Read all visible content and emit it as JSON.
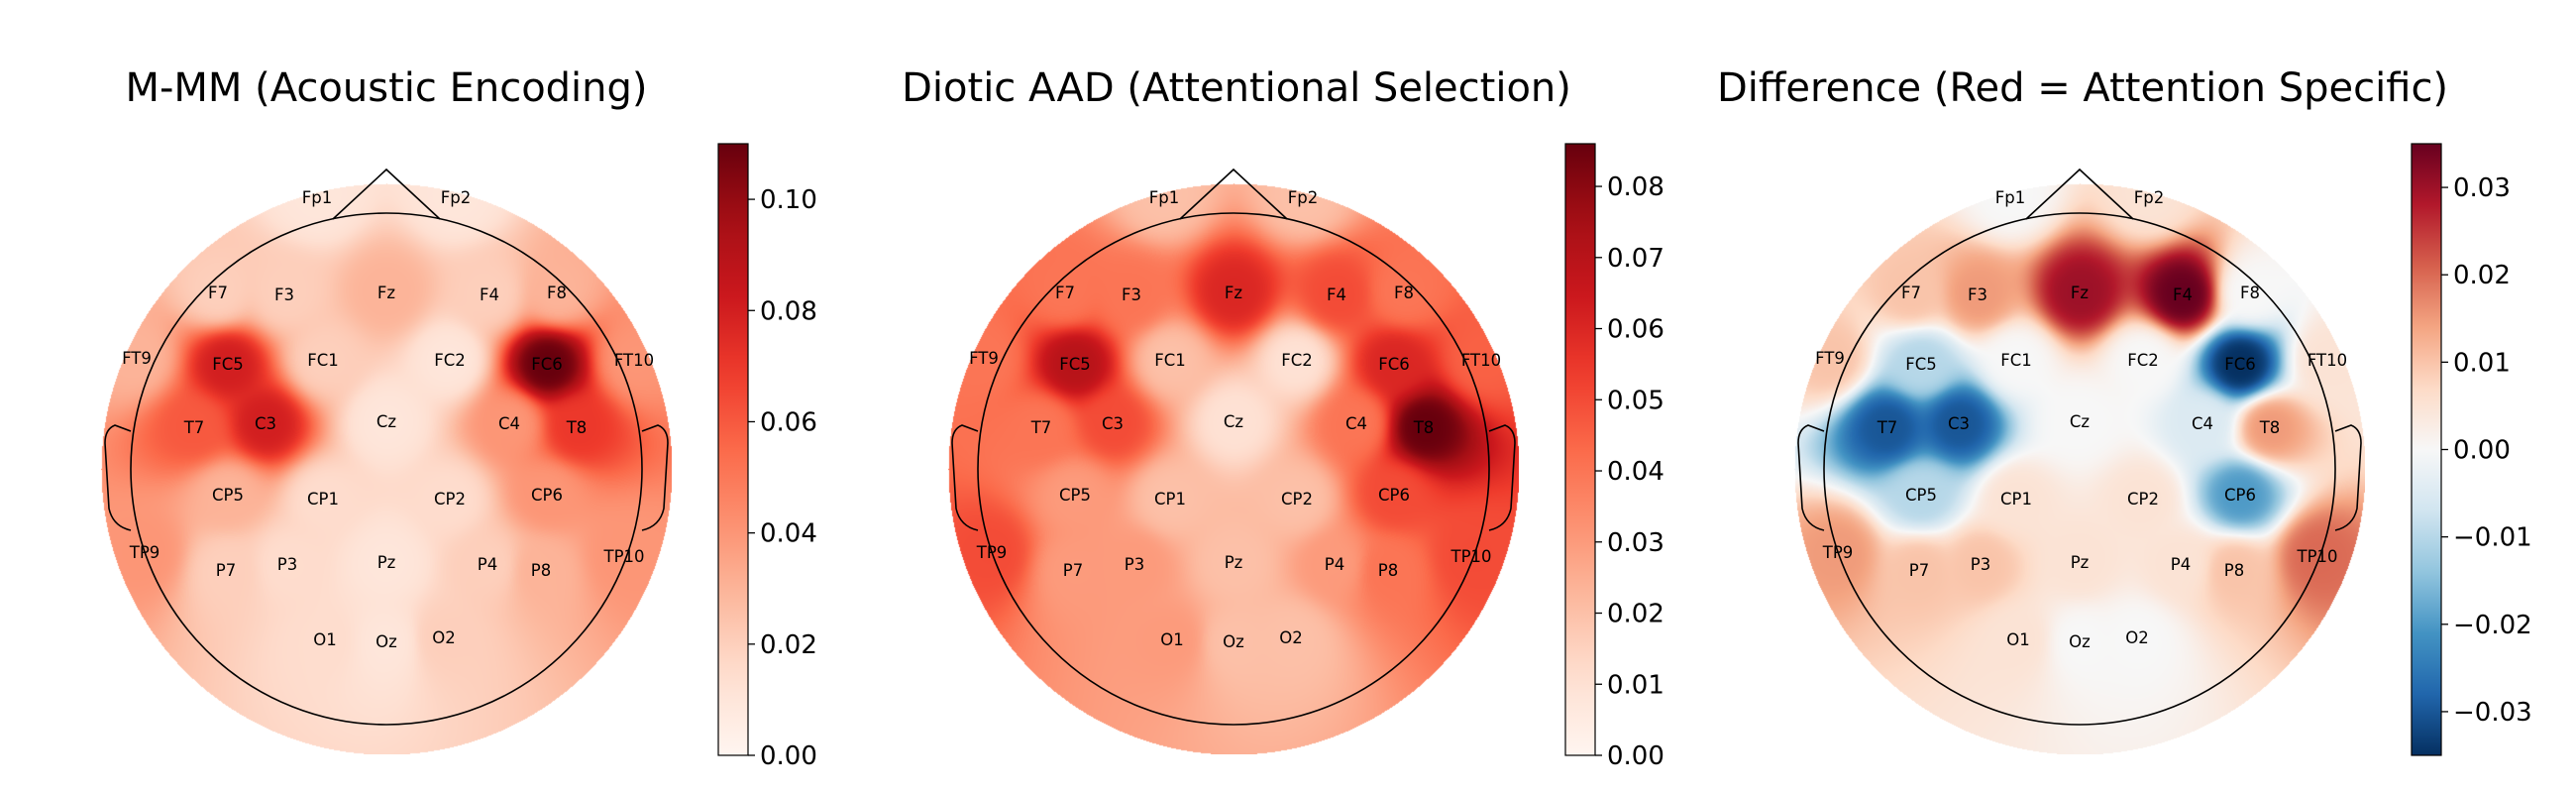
{
  "chart_data": [
    {
      "type": "heatmap",
      "subtype": "topographic-scalp-map",
      "title": "M-MM (Acoustic Encoding)",
      "colormap": "Reds",
      "vlim": [
        0.0,
        0.11
      ],
      "colorbar_ticks": [
        0.0,
        0.02,
        0.04,
        0.06,
        0.08,
        0.1
      ],
      "colorbar_tick_labels": [
        "0.00",
        "0.02",
        "0.04",
        "0.06",
        "0.08",
        "0.10"
      ],
      "channels": [
        "Fp1",
        "Fp2",
        "F7",
        "F3",
        "Fz",
        "F4",
        "F8",
        "FT9",
        "FC5",
        "FC1",
        "FC2",
        "FC6",
        "FT10",
        "T7",
        "C3",
        "Cz",
        "C4",
        "T8",
        "CP5",
        "CP1",
        "CP2",
        "CP6",
        "TP9",
        "TP10",
        "P7",
        "P3",
        "Pz",
        "P4",
        "P8",
        "O1",
        "Oz",
        "O2"
      ],
      "values": [
        0.01,
        0.01,
        0.02,
        0.02,
        0.03,
        0.02,
        0.03,
        0.03,
        0.08,
        0.02,
        0.01,
        0.11,
        0.04,
        0.06,
        0.08,
        0.01,
        0.04,
        0.07,
        0.03,
        0.015,
        0.015,
        0.04,
        0.04,
        0.04,
        0.02,
        0.015,
        0.01,
        0.02,
        0.03,
        0.015,
        0.01,
        0.02
      ]
    },
    {
      "type": "heatmap",
      "subtype": "topographic-scalp-map",
      "title": "Diotic AAD (Attentional Selection)",
      "colormap": "Reds",
      "vlim": [
        0.0,
        0.086
      ],
      "colorbar_ticks": [
        0.0,
        0.01,
        0.02,
        0.03,
        0.04,
        0.05,
        0.06,
        0.07,
        0.08
      ],
      "colorbar_tick_labels": [
        "0.00",
        "0.01",
        "0.02",
        "0.03",
        "0.04",
        "0.05",
        "0.06",
        "0.07",
        "0.08"
      ],
      "channels": [
        "Fp1",
        "Fp2",
        "F7",
        "F3",
        "Fz",
        "F4",
        "F8",
        "FT9",
        "FC5",
        "FC1",
        "FC2",
        "FC6",
        "FT10",
        "T7",
        "C3",
        "Cz",
        "C4",
        "T8",
        "CP5",
        "CP1",
        "CP2",
        "CP6",
        "TP9",
        "TP10",
        "P7",
        "P3",
        "Pz",
        "P4",
        "P8",
        "O1",
        "Oz",
        "O2"
      ],
      "values": [
        0.02,
        0.02,
        0.04,
        0.04,
        0.06,
        0.05,
        0.04,
        0.04,
        0.07,
        0.02,
        0.01,
        0.06,
        0.045,
        0.04,
        0.05,
        0.01,
        0.04,
        0.086,
        0.03,
        0.02,
        0.02,
        0.05,
        0.05,
        0.05,
        0.03,
        0.03,
        0.02,
        0.03,
        0.04,
        0.03,
        0.02,
        0.02
      ]
    },
    {
      "type": "heatmap",
      "subtype": "topographic-scalp-map",
      "title": "Difference (Red = Attention Specific)",
      "colormap": "RdBu_r",
      "vlim": [
        -0.035,
        0.035
      ],
      "colorbar_ticks": [
        -0.03,
        -0.02,
        -0.01,
        0.0,
        0.01,
        0.02,
        0.03
      ],
      "colorbar_tick_labels": [
        "−0.03",
        "−0.02",
        "−0.01",
        "0.00",
        "0.01",
        "0.02",
        "0.03"
      ],
      "channels": [
        "Fp1",
        "Fp2",
        "F7",
        "F3",
        "Fz",
        "F4",
        "F8",
        "FT9",
        "FC5",
        "FC1",
        "FC2",
        "FC6",
        "FT10",
        "T7",
        "C3",
        "Cz",
        "C4",
        "T8",
        "CP5",
        "CP1",
        "CP2",
        "CP6",
        "TP9",
        "TP10",
        "P7",
        "P3",
        "Pz",
        "P4",
        "P8",
        "O1",
        "Oz",
        "O2"
      ],
      "values": [
        0.0,
        0.005,
        0.01,
        0.015,
        0.03,
        0.035,
        0.0,
        0.01,
        -0.01,
        0.0,
        0.0,
        -0.035,
        0.005,
        -0.03,
        -0.03,
        0.0,
        -0.005,
        0.015,
        -0.01,
        0.005,
        0.005,
        -0.02,
        0.015,
        0.02,
        0.01,
        0.01,
        0.005,
        0.005,
        0.01,
        0.005,
        0.0,
        0.0
      ]
    }
  ]
}
